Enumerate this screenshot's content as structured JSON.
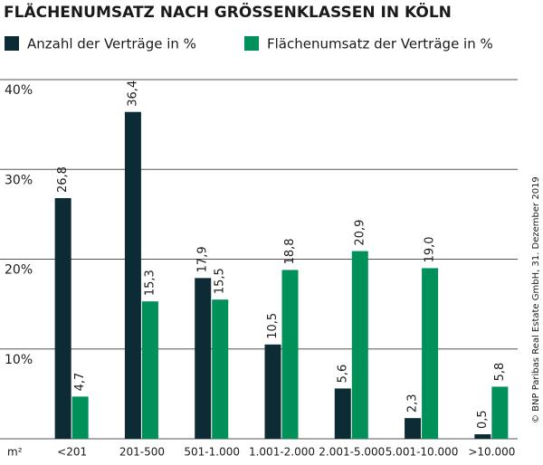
{
  "chart_data": {
    "type": "bar",
    "title": "FLÄCHENUMSATZ NACH GRÖSSENKLASSEN IN KÖLN",
    "x_label": "m²",
    "source": "© BNP Paribas Real Estate GmbH, 31. Dezember 2019",
    "categories": [
      "<201",
      "201-500",
      "501-1.000",
      "1.001-2.000",
      "2.001-5.000",
      "5.001-10.000",
      ">10.000"
    ],
    "series": [
      {
        "name": "Anzahl der Verträge in %",
        "color": "#0d2b35",
        "values": [
          26.8,
          36.4,
          17.9,
          10.5,
          5.6,
          2.3,
          0.5
        ],
        "value_labels": [
          "26,8",
          "36,4",
          "17,9",
          "10,5",
          "5,6",
          "2,3",
          "0,5"
        ]
      },
      {
        "name": "Flächenumsatz der Verträge in %",
        "color": "#00905a",
        "values": [
          4.7,
          15.3,
          15.5,
          18.8,
          20.9,
          19.0,
          5.8
        ],
        "value_labels": [
          "4,7",
          "15,3",
          "15,5",
          "18,8",
          "20,9",
          "19,0",
          "5,8"
        ]
      }
    ],
    "ylim": [
      0,
      40
    ],
    "yticks": [
      {
        "value": 10,
        "label": "10%"
      },
      {
        "value": 20,
        "label": "20%"
      },
      {
        "value": 30,
        "label": "30%"
      },
      {
        "value": 40,
        "label": "40%"
      }
    ],
    "grid": true
  }
}
